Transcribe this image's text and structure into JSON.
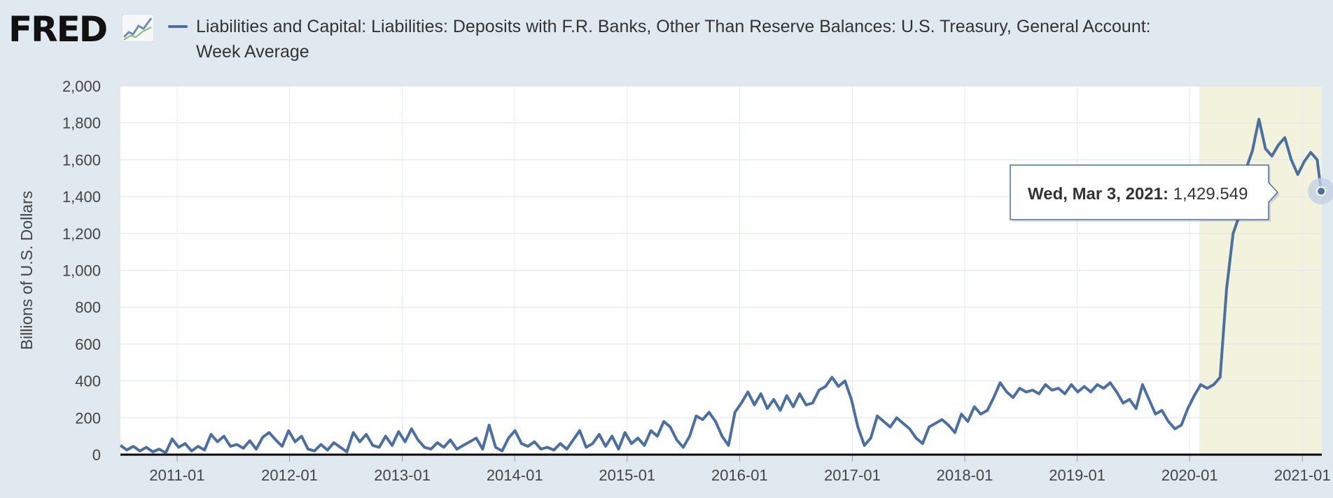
{
  "header": {
    "logo_text": "FRED",
    "logo_icon": "line-graph-icon"
  },
  "colors": {
    "series": "#4c6fa1",
    "recession": "#f3f3dd",
    "background": "#e1e9f0",
    "plot": "#ffffff"
  },
  "tooltip": {
    "date": "Wed, Mar 3, 2021:",
    "value": "1,429.549"
  },
  "chart_data": {
    "type": "line",
    "title": "Liabilities and Capital: Liabilities: Deposits with F.R. Banks, Other Than Reserve Balances: U.S. Treasury, General Account: Week Average",
    "xlabel": "",
    "ylabel": "Billions of U.S. Dollars",
    "xlim": [
      "2010-07-01",
      "2021-03-05"
    ],
    "ylim": [
      0,
      2000
    ],
    "yticks": [
      0,
      200,
      400,
      600,
      800,
      1000,
      1200,
      1400,
      1600,
      1800,
      2000
    ],
    "ytick_labels": [
      "0",
      "200",
      "400",
      "600",
      "800",
      "1,000",
      "1,200",
      "1,400",
      "1,600",
      "1,800",
      "2,000"
    ],
    "xticks": [
      "2011-01-01",
      "2012-01-01",
      "2013-01-01",
      "2014-01-01",
      "2015-01-01",
      "2016-01-01",
      "2017-01-01",
      "2018-01-01",
      "2019-01-01",
      "2020-01-01",
      "2021-01-01"
    ],
    "xtick_labels": [
      "2011-01",
      "2012-01",
      "2013-01",
      "2014-01",
      "2015-01",
      "2016-01",
      "2017-01",
      "2018-01",
      "2019-01",
      "2020-01",
      "2021-01"
    ],
    "grid": true,
    "shaded_regions": [
      {
        "start": "2020-02-01",
        "end": "2021-03-05"
      }
    ],
    "series": [
      {
        "name": "Liabilities and Capital: Liabilities: Deposits with F.R. Banks, Other Than Reserve Balances: U.S. Treasury, General Account: Week Average",
        "points": [
          [
            "2010-07-01",
            50
          ],
          [
            "2010-07-22",
            25
          ],
          [
            "2010-08-12",
            45
          ],
          [
            "2010-09-02",
            20
          ],
          [
            "2010-09-23",
            40
          ],
          [
            "2010-10-14",
            15
          ],
          [
            "2010-11-04",
            30
          ],
          [
            "2010-11-25",
            10
          ],
          [
            "2010-12-16",
            85
          ],
          [
            "2011-01-06",
            40
          ],
          [
            "2011-01-27",
            60
          ],
          [
            "2011-02-17",
            20
          ],
          [
            "2011-03-10",
            45
          ],
          [
            "2011-03-31",
            25
          ],
          [
            "2011-04-21",
            110
          ],
          [
            "2011-05-12",
            70
          ],
          [
            "2011-06-02",
            100
          ],
          [
            "2011-06-23",
            45
          ],
          [
            "2011-07-14",
            55
          ],
          [
            "2011-08-04",
            35
          ],
          [
            "2011-08-25",
            75
          ],
          [
            "2011-09-15",
            30
          ],
          [
            "2011-10-06",
            95
          ],
          [
            "2011-10-27",
            120
          ],
          [
            "2011-11-17",
            80
          ],
          [
            "2011-12-08",
            45
          ],
          [
            "2011-12-29",
            130
          ],
          [
            "2012-01-19",
            70
          ],
          [
            "2012-02-09",
            100
          ],
          [
            "2012-03-01",
            30
          ],
          [
            "2012-03-22",
            20
          ],
          [
            "2012-04-12",
            55
          ],
          [
            "2012-05-03",
            25
          ],
          [
            "2012-05-24",
            65
          ],
          [
            "2012-06-14",
            40
          ],
          [
            "2012-07-05",
            15
          ],
          [
            "2012-07-26",
            120
          ],
          [
            "2012-08-16",
            70
          ],
          [
            "2012-09-06",
            110
          ],
          [
            "2012-09-27",
            50
          ],
          [
            "2012-10-18",
            40
          ],
          [
            "2012-11-08",
            100
          ],
          [
            "2012-11-29",
            50
          ],
          [
            "2012-12-20",
            125
          ],
          [
            "2013-01-10",
            70
          ],
          [
            "2013-01-31",
            140
          ],
          [
            "2013-02-21",
            80
          ],
          [
            "2013-03-14",
            40
          ],
          [
            "2013-04-04",
            30
          ],
          [
            "2013-04-25",
            65
          ],
          [
            "2013-05-16",
            40
          ],
          [
            "2013-06-06",
            80
          ],
          [
            "2013-06-27",
            30
          ],
          [
            "2013-07-18",
            50
          ],
          [
            "2013-08-08",
            70
          ],
          [
            "2013-08-29",
            90
          ],
          [
            "2013-09-19",
            30
          ],
          [
            "2013-10-10",
            160
          ],
          [
            "2013-10-31",
            40
          ],
          [
            "2013-11-21",
            20
          ],
          [
            "2013-12-12",
            90
          ],
          [
            "2014-01-02",
            130
          ],
          [
            "2014-01-23",
            60
          ],
          [
            "2014-02-13",
            45
          ],
          [
            "2014-03-06",
            70
          ],
          [
            "2014-03-27",
            30
          ],
          [
            "2014-04-17",
            40
          ],
          [
            "2014-05-08",
            25
          ],
          [
            "2014-05-29",
            60
          ],
          [
            "2014-06-19",
            30
          ],
          [
            "2014-07-10",
            80
          ],
          [
            "2014-07-31",
            130
          ],
          [
            "2014-08-21",
            40
          ],
          [
            "2014-09-11",
            60
          ],
          [
            "2014-10-02",
            110
          ],
          [
            "2014-10-23",
            45
          ],
          [
            "2014-11-13",
            100
          ],
          [
            "2014-12-04",
            30
          ],
          [
            "2014-12-25",
            120
          ],
          [
            "2015-01-15",
            60
          ],
          [
            "2015-02-05",
            90
          ],
          [
            "2015-02-26",
            50
          ],
          [
            "2015-03-19",
            130
          ],
          [
            "2015-04-09",
            100
          ],
          [
            "2015-04-30",
            180
          ],
          [
            "2015-05-21",
            150
          ],
          [
            "2015-06-11",
            80
          ],
          [
            "2015-07-02",
            40
          ],
          [
            "2015-07-23",
            100
          ],
          [
            "2015-08-13",
            210
          ],
          [
            "2015-09-03",
            190
          ],
          [
            "2015-09-24",
            230
          ],
          [
            "2015-10-15",
            180
          ],
          [
            "2015-11-05",
            100
          ],
          [
            "2015-11-26",
            50
          ],
          [
            "2015-12-17",
            230
          ],
          [
            "2016-01-07",
            280
          ],
          [
            "2016-01-28",
            340
          ],
          [
            "2016-02-18",
            270
          ],
          [
            "2016-03-10",
            330
          ],
          [
            "2016-03-31",
            250
          ],
          [
            "2016-04-21",
            300
          ],
          [
            "2016-05-12",
            240
          ],
          [
            "2016-06-02",
            320
          ],
          [
            "2016-06-23",
            260
          ],
          [
            "2016-07-14",
            330
          ],
          [
            "2016-08-04",
            270
          ],
          [
            "2016-08-25",
            280
          ],
          [
            "2016-09-15",
            350
          ],
          [
            "2016-10-06",
            370
          ],
          [
            "2016-10-27",
            420
          ],
          [
            "2016-11-17",
            370
          ],
          [
            "2016-12-08",
            400
          ],
          [
            "2016-12-29",
            300
          ],
          [
            "2017-01-19",
            150
          ],
          [
            "2017-02-09",
            50
          ],
          [
            "2017-03-02",
            90
          ],
          [
            "2017-03-23",
            210
          ],
          [
            "2017-04-13",
            180
          ],
          [
            "2017-05-04",
            150
          ],
          [
            "2017-05-25",
            200
          ],
          [
            "2017-06-15",
            170
          ],
          [
            "2017-07-06",
            140
          ],
          [
            "2017-07-27",
            90
          ],
          [
            "2017-08-17",
            60
          ],
          [
            "2017-09-07",
            150
          ],
          [
            "2017-09-28",
            170
          ],
          [
            "2017-10-19",
            190
          ],
          [
            "2017-11-09",
            160
          ],
          [
            "2017-11-30",
            120
          ],
          [
            "2017-12-21",
            220
          ],
          [
            "2018-01-11",
            180
          ],
          [
            "2018-02-01",
            260
          ],
          [
            "2018-02-22",
            220
          ],
          [
            "2018-03-15",
            240
          ],
          [
            "2018-04-05",
            310
          ],
          [
            "2018-04-26",
            390
          ],
          [
            "2018-05-17",
            340
          ],
          [
            "2018-06-07",
            310
          ],
          [
            "2018-06-28",
            360
          ],
          [
            "2018-07-19",
            340
          ],
          [
            "2018-08-09",
            350
          ],
          [
            "2018-08-30",
            330
          ],
          [
            "2018-09-20",
            380
          ],
          [
            "2018-10-11",
            350
          ],
          [
            "2018-11-01",
            360
          ],
          [
            "2018-11-22",
            330
          ],
          [
            "2018-12-13",
            380
          ],
          [
            "2019-01-03",
            340
          ],
          [
            "2019-01-24",
            370
          ],
          [
            "2019-02-14",
            340
          ],
          [
            "2019-03-07",
            380
          ],
          [
            "2019-03-28",
            360
          ],
          [
            "2019-04-18",
            390
          ],
          [
            "2019-05-09",
            340
          ],
          [
            "2019-05-30",
            280
          ],
          [
            "2019-06-20",
            300
          ],
          [
            "2019-07-11",
            250
          ],
          [
            "2019-08-01",
            380
          ],
          [
            "2019-08-22",
            300
          ],
          [
            "2019-09-12",
            220
          ],
          [
            "2019-10-03",
            240
          ],
          [
            "2019-10-24",
            180
          ],
          [
            "2019-11-14",
            140
          ],
          [
            "2019-12-05",
            160
          ],
          [
            "2019-12-26",
            250
          ],
          [
            "2020-01-16",
            320
          ],
          [
            "2020-02-06",
            380
          ],
          [
            "2020-02-27",
            360
          ],
          [
            "2020-03-19",
            380
          ],
          [
            "2020-04-09",
            420
          ],
          [
            "2020-04-30",
            900
          ],
          [
            "2020-05-21",
            1200
          ],
          [
            "2020-06-11",
            1300
          ],
          [
            "2020-07-02",
            1550
          ],
          [
            "2020-07-23",
            1650
          ],
          [
            "2020-08-13",
            1820
          ],
          [
            "2020-09-03",
            1660
          ],
          [
            "2020-09-24",
            1620
          ],
          [
            "2020-10-15",
            1680
          ],
          [
            "2020-11-05",
            1720
          ],
          [
            "2020-11-26",
            1600
          ],
          [
            "2020-12-17",
            1520
          ],
          [
            "2021-01-07",
            1590
          ],
          [
            "2021-01-28",
            1640
          ],
          [
            "2021-02-18",
            1600
          ],
          [
            "2021-03-03",
            1429.549
          ]
        ]
      }
    ]
  }
}
